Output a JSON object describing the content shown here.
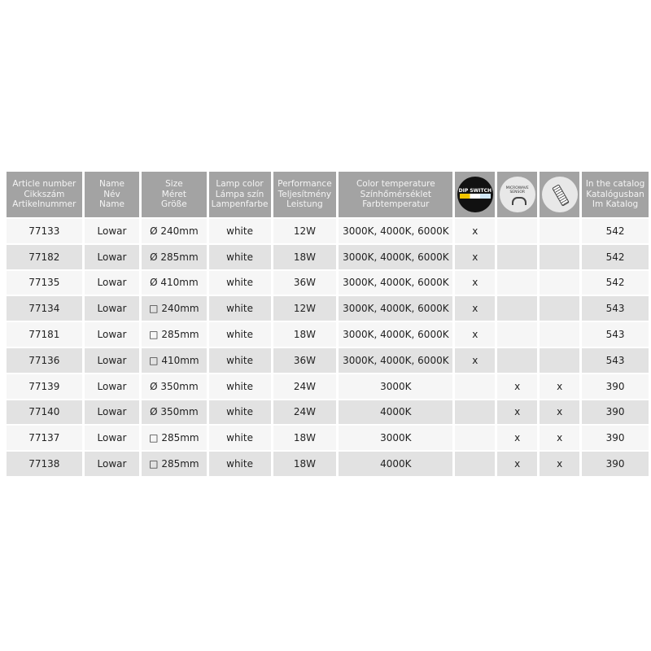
{
  "headers": [
    [
      "Article number",
      "Cikkszám",
      "Artikelnummer"
    ],
    [
      "Name",
      "Név",
      "Name"
    ],
    [
      "Size",
      "Méret",
      "Größe"
    ],
    [
      "Lamp color",
      "Lámpa szín",
      "Lampenfarbe"
    ],
    [
      "Performance",
      "Teljesítmény",
      "Leistung"
    ],
    [
      "Color temperature",
      "Színhőmérséklet",
      "Farbtemperatur"
    ],
    {
      "icon": "dip-switch-icon",
      "label": "DIP SWITCH"
    },
    {
      "icon": "microwave-sensor-icon",
      "label": "MICROWAVE SENSOR"
    },
    {
      "icon": "remote-control-icon"
    },
    [
      "In the catalog",
      "Katalógusban",
      "Im Katalog"
    ]
  ],
  "rows": [
    [
      "77133",
      "Lowar",
      "Ø 240mm",
      "white",
      "12W",
      "3000K, 4000K, 6000K",
      "x",
      "",
      "",
      "542"
    ],
    [
      "77182",
      "Lowar",
      "Ø 285mm",
      "white",
      "18W",
      "3000K, 4000K, 6000K",
      "x",
      "",
      "",
      "542"
    ],
    [
      "77135",
      "Lowar",
      "Ø 410mm",
      "white",
      "36W",
      "3000K, 4000K, 6000K",
      "x",
      "",
      "",
      "542"
    ],
    [
      "77134",
      "Lowar",
      "□ 240mm",
      "white",
      "12W",
      "3000K, 4000K, 6000K",
      "x",
      "",
      "",
      "543"
    ],
    [
      "77181",
      "Lowar",
      "□ 285mm",
      "white",
      "18W",
      "3000K, 4000K, 6000K",
      "x",
      "",
      "",
      "543"
    ],
    [
      "77136",
      "Lowar",
      "□ 410mm",
      "white",
      "36W",
      "3000K, 4000K, 6000K",
      "x",
      "",
      "",
      "543"
    ],
    [
      "77139",
      "Lowar",
      "Ø 350mm",
      "white",
      "24W",
      "3000K",
      "",
      "x",
      "x",
      "390"
    ],
    [
      "77140",
      "Lowar",
      "Ø 350mm",
      "white",
      "24W",
      "4000K",
      "",
      "x",
      "x",
      "390"
    ],
    [
      "77137",
      "Lowar",
      "□ 285mm",
      "white",
      "18W",
      "3000K",
      "",
      "x",
      "x",
      "390"
    ],
    [
      "77138",
      "Lowar",
      "□ 285mm",
      "white",
      "18W",
      "4000K",
      "",
      "x",
      "x",
      "390"
    ]
  ]
}
